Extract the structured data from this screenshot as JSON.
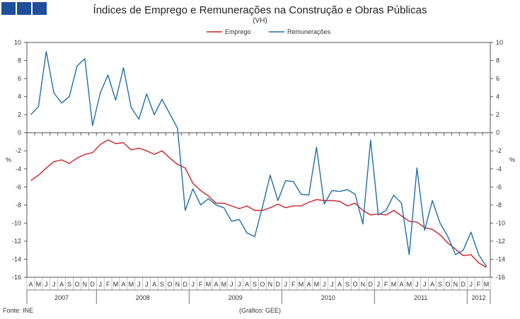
{
  "header": {
    "title": "Índices de Emprego e Remunerações na Construção e Obras Públicas",
    "subtitle": "(VH)"
  },
  "footer": {
    "source": "Fonte: INE",
    "chart_credit": "(Gráfico: GEE)"
  },
  "chart_data": {
    "type": "line",
    "title": "Índices de Emprego e Remunerações na Construção e Obras Públicas",
    "subtitle": "(VH)",
    "ylabel": "%",
    "ylim": [
      -16,
      10
    ],
    "yticks": [
      10,
      8,
      6,
      4,
      2,
      0,
      -2,
      -4,
      -6,
      -8,
      -10,
      -12,
      -14,
      -16
    ],
    "month_labels": [
      "A",
      "M",
      "J",
      "J",
      "A",
      "S",
      "O",
      "N",
      "D",
      "J",
      "F",
      "M",
      "A",
      "M",
      "J",
      "J",
      "A",
      "S",
      "O",
      "N",
      "D",
      "J",
      "F",
      "M",
      "A",
      "M",
      "J",
      "J",
      "A",
      "S",
      "O",
      "N",
      "D",
      "J",
      "F",
      "M",
      "A",
      "M",
      "J",
      "J",
      "A",
      "S",
      "O",
      "N",
      "D",
      "J",
      "F",
      "M",
      "A",
      "M",
      "J",
      "J",
      "A",
      "S",
      "O",
      "N",
      "D",
      "J",
      "F",
      "M"
    ],
    "year_groups": [
      {
        "label": "2007",
        "start": 0,
        "end": 8
      },
      {
        "label": "2008",
        "start": 9,
        "end": 20
      },
      {
        "label": "2009",
        "start": 21,
        "end": 32
      },
      {
        "label": "2010",
        "start": 33,
        "end": 44
      },
      {
        "label": "2011",
        "start": 45,
        "end": 56
      },
      {
        "label": "2012",
        "start": 57,
        "end": 59
      }
    ],
    "legend_position": "top-center",
    "grid": false,
    "series": [
      {
        "name": "Emprego",
        "color": "#cc2229",
        "values": [
          -5.3,
          -4.7,
          -3.9,
          -3.2,
          -3.0,
          -3.4,
          -2.8,
          -2.4,
          -2.2,
          -1.3,
          -0.8,
          -1.2,
          -1.1,
          -1.9,
          -1.7,
          -2.0,
          -2.4,
          -2.0,
          -2.8,
          -3.5,
          -3.9,
          -5.6,
          -6.4,
          -7.0,
          -7.8,
          -7.8,
          -8.1,
          -8.4,
          -8.1,
          -8.6,
          -8.6,
          -8.3,
          -7.9,
          -8.3,
          -8.1,
          -8.1,
          -7.7,
          -7.4,
          -7.5,
          -7.5,
          -7.6,
          -8.1,
          -7.8,
          -8.6,
          -9.1,
          -9.0,
          -9.1,
          -8.6,
          -9.2,
          -9.8,
          -9.9,
          -10.5,
          -10.7,
          -11.3,
          -12.2,
          -12.9,
          -13.6,
          -13.5,
          -14.4,
          -14.9
        ]
      },
      {
        "name": "Remunerações",
        "color": "#1f6fa8",
        "values": [
          2.0,
          2.9,
          9.0,
          4.4,
          3.3,
          4.0,
          7.4,
          8.2,
          0.8,
          4.4,
          6.4,
          3.6,
          7.2,
          2.8,
          1.5,
          4.3,
          2.0,
          3.7,
          2.1,
          0.5,
          -8.6,
          -6.2,
          -8.0,
          -7.3,
          -8.0,
          -8.3,
          -9.8,
          -9.6,
          -11.1,
          -11.5,
          -8.2,
          -4.7,
          -7.5,
          -5.3,
          -5.4,
          -6.8,
          -6.9,
          -1.6,
          -7.9,
          -6.4,
          -6.5,
          -6.3,
          -6.8,
          -10.1,
          -0.8,
          -9.1,
          -8.6,
          -6.9,
          -7.8,
          -13.5,
          -3.9,
          -10.8,
          -7.5,
          -10.0,
          -11.5,
          -13.5,
          -13.0,
          -11.0,
          -13.5,
          -14.8
        ]
      }
    ]
  }
}
